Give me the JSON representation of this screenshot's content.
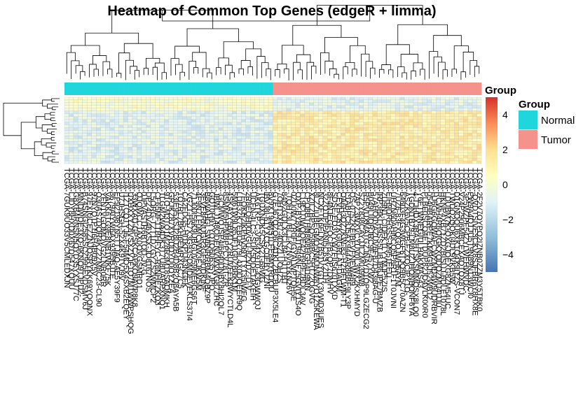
{
  "chart_data": {
    "type": "heatmap",
    "title": "Heatmap of Common Top Genes (edgeR + limma)",
    "annotation": {
      "title": "Group",
      "column_groups": [
        {
          "name": "Normal",
          "count": 46,
          "color": "#1fd6dc"
        },
        {
          "name": "Tumor",
          "count": 46,
          "color": "#f4928b"
        }
      ]
    },
    "legend": {
      "title": "Group",
      "entries": [
        {
          "label": "Normal",
          "color": "#1fd6dc"
        },
        {
          "label": "Tumor",
          "color": "#f4928b"
        }
      ],
      "position": "right"
    },
    "color_scale": {
      "ticks": [
        4,
        2,
        0,
        -2,
        -4
      ],
      "range": [
        -5,
        5
      ],
      "colors": [
        "#4575b4",
        "#91bfdb",
        "#e0f3f8",
        "#ffffbf",
        "#fee090",
        "#fc8d59",
        "#d73027"
      ]
    },
    "rows": 24,
    "columns": 92,
    "row_clusters": [
      {
        "rows": 5,
        "normal_mean": 0.2,
        "tumor_mean": -0.8
      },
      {
        "rows": 19,
        "normal_mean": -0.9,
        "tumor_mean": 1.4
      }
    ],
    "column_labels": "sample IDs (illegible, overlapping)",
    "row_dendrogram": true,
    "column_dendrogram": true
  }
}
